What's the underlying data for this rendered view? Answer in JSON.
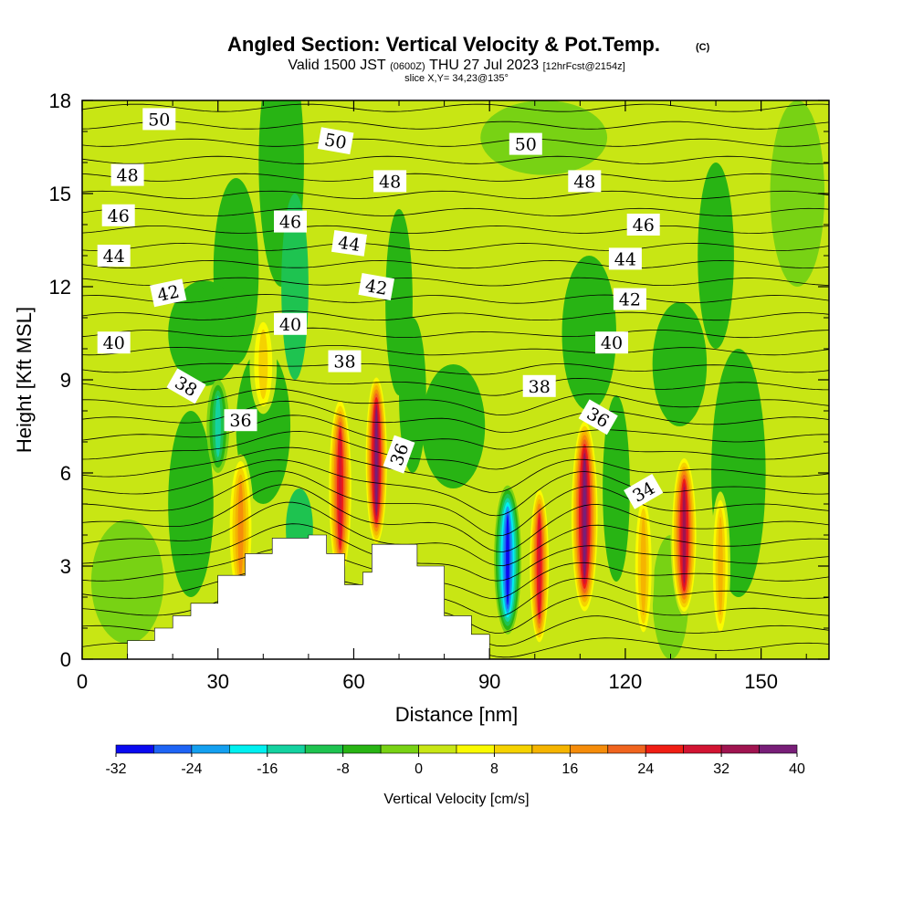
{
  "chart_data": {
    "type": "contour",
    "title": "Angled Section: Vertical Velocity & Pot.Temp.",
    "title_tag": "(C)",
    "subtitle_parts": [
      "Valid 1500 JST",
      "(0600Z)",
      "THU 27 Jul 2023",
      "[12hrFcst@2154z]"
    ],
    "slice_text": "slice X,Y= 34,23@135°",
    "xlabel": "Distance [nm]",
    "ylabel": "Height [Kft MSL]",
    "xlim": [
      0,
      165
    ],
    "ylim": [
      0,
      18
    ],
    "x_ticks": [
      0,
      30,
      60,
      90,
      120,
      150
    ],
    "y_ticks": [
      0,
      3,
      6,
      9,
      12,
      15,
      18
    ],
    "grid": false,
    "colorbar": {
      "label": "Vertical Velocity [cm/s]",
      "levels": [
        -32,
        -28,
        -24,
        -20,
        -16,
        -12,
        -8,
        -4,
        0,
        4,
        8,
        12,
        16,
        20,
        24,
        28,
        32,
        36,
        40
      ],
      "tick_labels": [
        "-32",
        "-24",
        "-16",
        "-8",
        "0",
        "8",
        "16",
        "24",
        "32",
        "40"
      ],
      "colors": [
        "#0a0af0",
        "#1e64f5",
        "#14a0f0",
        "#00f0f0",
        "#14d2a0",
        "#1ec350",
        "#28b414",
        "#78d214",
        "#c8e614",
        "#fafa00",
        "#f5d200",
        "#f5b400",
        "#f58c0a",
        "#f0641e",
        "#f01e14",
        "#d21432",
        "#a01450",
        "#781e78",
        "#5a0a8c"
      ]
    },
    "pot_temp_contour_labels": [
      {
        "text": "50",
        "x": 17,
        "y": 17.4,
        "rot": 0
      },
      {
        "text": "50",
        "x": 56,
        "y": 16.7,
        "rot": 10
      },
      {
        "text": "50",
        "x": 98,
        "y": 16.6,
        "rot": 0
      },
      {
        "text": "48",
        "x": 10,
        "y": 15.6,
        "rot": 0
      },
      {
        "text": "48",
        "x": 68,
        "y": 15.4,
        "rot": 0
      },
      {
        "text": "48",
        "x": 111,
        "y": 15.4,
        "rot": 0
      },
      {
        "text": "46",
        "x": 8,
        "y": 14.3,
        "rot": 0
      },
      {
        "text": "46",
        "x": 46,
        "y": 14.1,
        "rot": 0
      },
      {
        "text": "46",
        "x": 124,
        "y": 14.0,
        "rot": 0
      },
      {
        "text": "44",
        "x": 7,
        "y": 13.0,
        "rot": 0
      },
      {
        "text": "44",
        "x": 59,
        "y": 13.4,
        "rot": 8
      },
      {
        "text": "44",
        "x": 120,
        "y": 12.9,
        "rot": 0
      },
      {
        "text": "42",
        "x": 19,
        "y": 11.8,
        "rot": -12
      },
      {
        "text": "42",
        "x": 65,
        "y": 12.0,
        "rot": 10
      },
      {
        "text": "42",
        "x": 121,
        "y": 11.6,
        "rot": 0
      },
      {
        "text": "40",
        "x": 7,
        "y": 10.2,
        "rot": 0
      },
      {
        "text": "40",
        "x": 46,
        "y": 10.8,
        "rot": 0
      },
      {
        "text": "40",
        "x": 117,
        "y": 10.2,
        "rot": 0
      },
      {
        "text": "38",
        "x": 23,
        "y": 8.8,
        "rot": 30
      },
      {
        "text": "38",
        "x": 58,
        "y": 9.6,
        "rot": 0
      },
      {
        "text": "38",
        "x": 101,
        "y": 8.8,
        "rot": 0
      },
      {
        "text": "36",
        "x": 35,
        "y": 7.7,
        "rot": 0
      },
      {
        "text": "36",
        "x": 70,
        "y": 6.6,
        "rot": -70
      },
      {
        "text": "36",
        "x": 114,
        "y": 7.8,
        "rot": 30
      },
      {
        "text": "34",
        "x": 124,
        "y": 5.4,
        "rot": -30
      }
    ],
    "terrain_profile": [
      [
        10,
        0.6
      ],
      [
        16,
        1.0
      ],
      [
        20,
        1.4
      ],
      [
        24,
        1.8
      ],
      [
        30,
        2.7
      ],
      [
        36,
        3.4
      ],
      [
        42,
        3.9
      ],
      [
        50,
        4.0
      ],
      [
        54,
        3.4
      ],
      [
        58,
        2.4
      ],
      [
        62,
        2.8
      ],
      [
        64,
        3.7
      ],
      [
        70,
        3.7
      ],
      [
        74,
        3.0
      ],
      [
        80,
        1.4
      ],
      [
        86,
        0.8
      ],
      [
        90,
        0.3
      ]
    ]
  }
}
